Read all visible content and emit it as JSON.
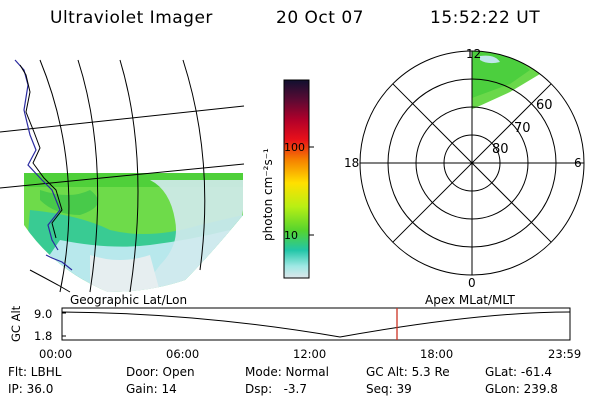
{
  "header": {
    "title": "Ultraviolet Imager",
    "date": "20 Oct 07",
    "time": "15:52:22 UT"
  },
  "geo_panel": {
    "caption": "Geographic Lat/Lon"
  },
  "apex_panel": {
    "caption": "Apex MLat/MLT"
  },
  "colorbar": {
    "unit_label": "photon cm⁻²s⁻¹",
    "ticks": [
      "100",
      "10"
    ],
    "colors": [
      "#101030",
      "#5b0a33",
      "#b0002a",
      "#e8101a",
      "#f57e00",
      "#ffe000",
      "#b8ef14",
      "#55d42e",
      "#22c6a8",
      "#9fe8e4",
      "#dde6ea"
    ]
  },
  "polar": {
    "mlt_labels": [
      "12",
      "18",
      "6",
      "0"
    ],
    "mlat_labels": [
      "60",
      "70",
      "80"
    ]
  },
  "timeline": {
    "y_axis_label": "GC Alt",
    "y_ticks": [
      "9.0",
      "1.8"
    ],
    "x_ticks": [
      "00:00",
      "06:00",
      "12:00",
      "18:00",
      "23:59"
    ],
    "marker_color": "#cc3322"
  },
  "info": {
    "filter": "Flt: LBHL",
    "ip": "IP: 36.0",
    "door": "Door: Open",
    "gain": "Gain: 14",
    "mode": "Mode: Normal",
    "dsp": "Dsp:   -3.7",
    "gc_alt": "GC Alt: 5.3 Re",
    "seq": "Seq: 39",
    "glat": "GLat: -61.4",
    "glon": "GLon: 239.8"
  }
}
